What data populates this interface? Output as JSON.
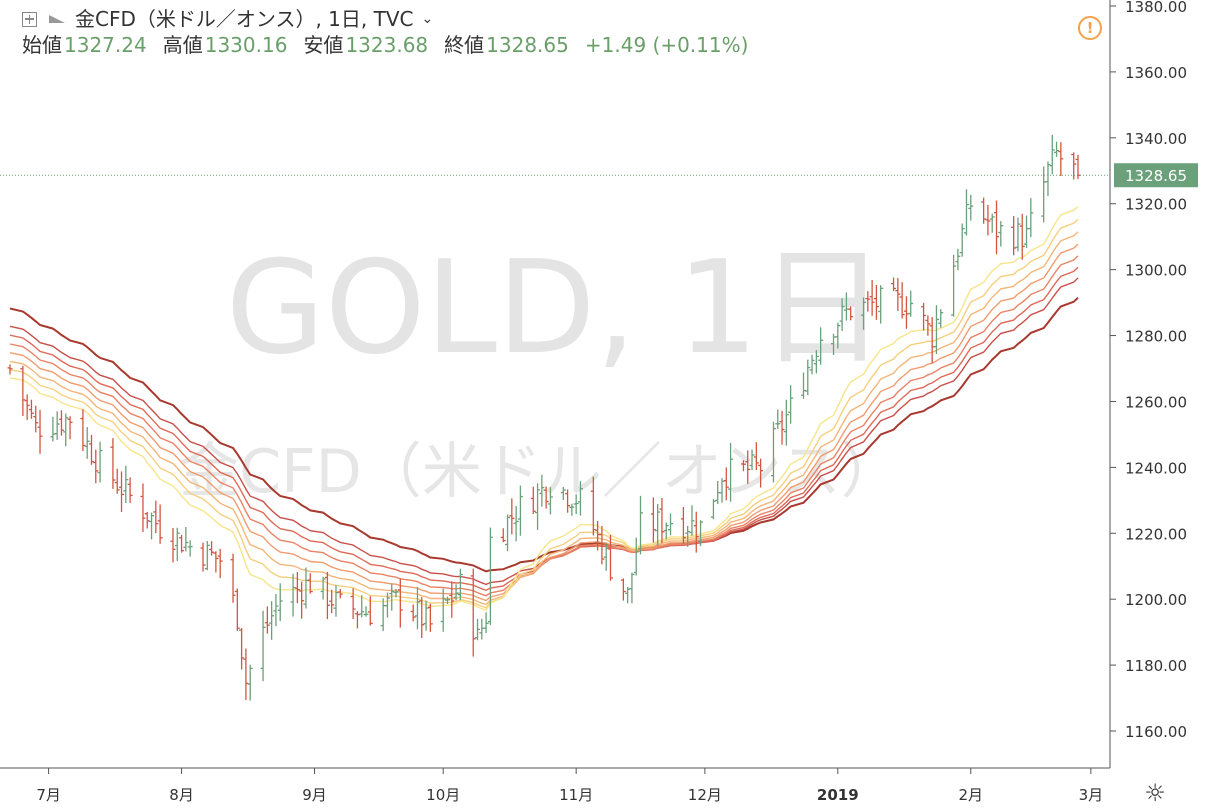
{
  "header": {
    "symbol_title": "金CFD（米ドル／オンス）, 1日, TVC",
    "ohlc": [
      {
        "label": "始値",
        "value": "1327.24"
      },
      {
        "label": "高値",
        "value": "1330.16"
      },
      {
        "label": "安値",
        "value": "1323.68"
      },
      {
        "label": "終値",
        "value": "1328.65"
      }
    ],
    "change": "+1.49 (+0.11%)"
  },
  "watermark": {
    "line1": "GOLD, 1日",
    "line2": "金CFD（米ドル／オンス）"
  },
  "last_price_label": "1328.65",
  "colors": {
    "up": "#6aa07a",
    "down": "#d2553f",
    "accent_green": "#6a9f6a",
    "alert": "#f5a04a"
  },
  "chart_data": {
    "type": "ohlc",
    "x_range": [
      "2018-06-22",
      "2019-02-26"
    ],
    "ylim": [
      1150,
      1380
    ],
    "y_ticks": [
      1160,
      1180,
      1200,
      1220,
      1240,
      1260,
      1280,
      1300,
      1320,
      1340,
      1360,
      1380
    ],
    "y_tick_labels": [
      "1160.00",
      "1180.00",
      "1200.00",
      "1220.00",
      "1240.00",
      "1260.00",
      "1280.00",
      "1300.00",
      "1320.00",
      "1340.00",
      "1360.00",
      "1380.00"
    ],
    "x_tick_labels": [
      "7月",
      "8月",
      "9月",
      "10月",
      "11月",
      "12月",
      "2019",
      "2月",
      "3月"
    ],
    "x_tick_dates": [
      "2018-07-01",
      "2018-08-01",
      "2018-09-01",
      "2018-10-01",
      "2018-11-01",
      "2018-12-01",
      "2019-01-01",
      "2019-02-01",
      "2019-03-01"
    ],
    "last_price": 1328.65,
    "close_path": [
      [
        "2018-06-22",
        1270
      ],
      [
        "2018-06-28",
        1252
      ],
      [
        "2018-07-06",
        1255
      ],
      [
        "2018-07-13",
        1241
      ],
      [
        "2018-07-20",
        1231
      ],
      [
        "2018-07-27",
        1222
      ],
      [
        "2018-08-03",
        1216
      ],
      [
        "2018-08-10",
        1212
      ],
      [
        "2018-08-14",
        1195
      ],
      [
        "2018-08-16",
        1175
      ],
      [
        "2018-08-20",
        1190
      ],
      [
        "2018-08-24",
        1200
      ],
      [
        "2018-08-31",
        1205
      ],
      [
        "2018-09-07",
        1198
      ],
      [
        "2018-09-14",
        1196
      ],
      [
        "2018-09-21",
        1200
      ],
      [
        "2018-09-28",
        1192
      ],
      [
        "2018-10-05",
        1204
      ],
      [
        "2018-10-09",
        1188
      ],
      [
        "2018-10-11",
        1195
      ],
      [
        "2018-10-12",
        1218
      ],
      [
        "2018-10-19",
        1228
      ],
      [
        "2018-10-26",
        1235
      ],
      [
        "2018-11-02",
        1230
      ],
      [
        "2018-11-09",
        1210
      ],
      [
        "2018-11-13",
        1201
      ],
      [
        "2018-11-16",
        1222
      ],
      [
        "2018-11-23",
        1224
      ],
      [
        "2018-11-30",
        1222
      ],
      [
        "2018-12-05",
        1238
      ],
      [
        "2018-12-14",
        1240
      ],
      [
        "2018-12-21",
        1258
      ],
      [
        "2018-12-28",
        1280
      ],
      [
        "2019-01-04",
        1288
      ],
      [
        "2019-01-11",
        1290
      ],
      [
        "2019-01-18",
        1290
      ],
      [
        "2019-01-23",
        1280
      ],
      [
        "2019-01-28",
        1302
      ],
      [
        "2019-02-01",
        1320
      ],
      [
        "2019-02-07",
        1312
      ],
      [
        "2019-02-14",
        1310
      ],
      [
        "2019-02-19",
        1330
      ],
      [
        "2019-02-21",
        1335
      ],
      [
        "2019-02-26",
        1328.65
      ]
    ],
    "moving_average_lengths": [
      20,
      25,
      30,
      35,
      40,
      45,
      50,
      60
    ],
    "moving_average_colors": [
      "#f7e58a",
      "#f6cf7e",
      "#f4b678",
      "#f09c6f",
      "#e98366",
      "#df6a58",
      "#c9504a",
      "#a8392e"
    ]
  }
}
